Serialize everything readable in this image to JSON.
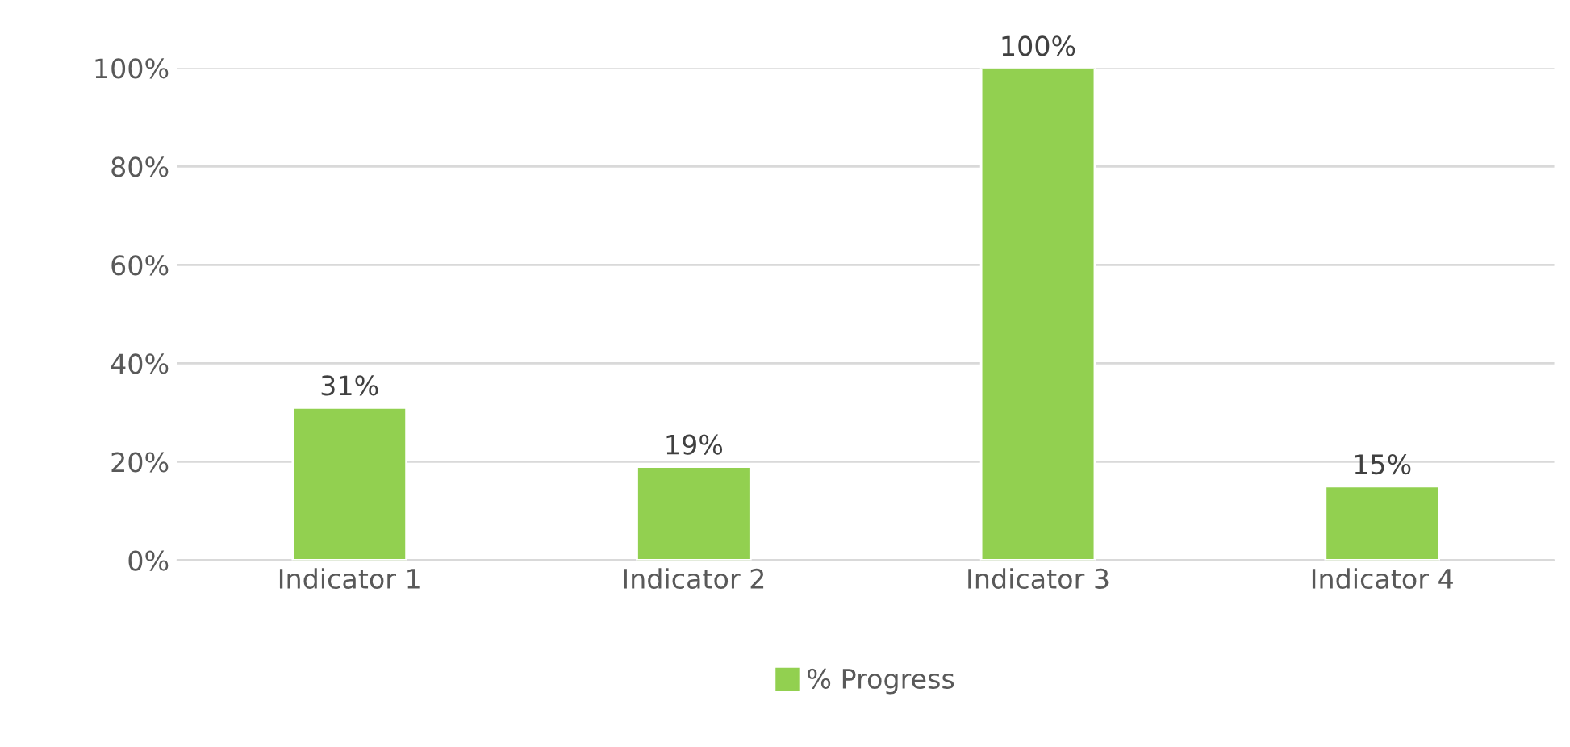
{
  "chart_data": {
    "type": "bar",
    "categories": [
      "Indicator 1",
      "Indicator 2",
      "Indicator 3",
      "Indicator 4"
    ],
    "series": [
      {
        "name": "% Progress",
        "color": "#92d050",
        "values": [
          31,
          19,
          100,
          15
        ],
        "value_labels": [
          "31%",
          "19%",
          "100%",
          "15%"
        ]
      }
    ],
    "ylim": [
      0,
      100
    ],
    "yticks": [
      {
        "value": 0,
        "label": "0%"
      },
      {
        "value": 20,
        "label": "20%"
      },
      {
        "value": 40,
        "label": "40%"
      },
      {
        "value": 60,
        "label": "60%"
      },
      {
        "value": 80,
        "label": "80%"
      },
      {
        "value": 100,
        "label": "100%"
      }
    ],
    "grid": "y",
    "legend": "bottom"
  }
}
